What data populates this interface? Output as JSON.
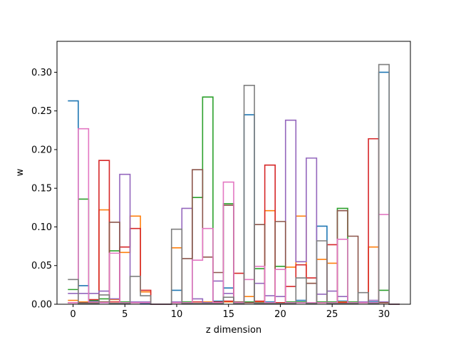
{
  "chart_data": {
    "type": "step",
    "title": "",
    "xlabel": "z dimension",
    "ylabel": "w",
    "xlim": [
      -1.55,
      32.55
    ],
    "ylim": [
      0,
      0.34
    ],
    "x": [
      0,
      1,
      2,
      3,
      4,
      5,
      6,
      7,
      8,
      9,
      10,
      11,
      12,
      13,
      14,
      15,
      16,
      17,
      18,
      19,
      20,
      21,
      22,
      23,
      24,
      25,
      26,
      27,
      28,
      29,
      30,
      31
    ],
    "x_ticks": [
      0,
      5,
      10,
      15,
      20,
      25,
      30
    ],
    "x_tick_labels": [
      "0",
      "5",
      "10",
      "15",
      "20",
      "25",
      "30"
    ],
    "y_ticks": [
      0,
      0.05,
      0.1,
      0.15,
      0.2,
      0.25,
      0.3
    ],
    "y_tick_labels": [
      "0.00",
      "0.05",
      "0.10",
      "0.15",
      "0.20",
      "0.25",
      "0.30"
    ],
    "grid": false,
    "legend": "none",
    "series": [
      {
        "color": "#1f77b4",
        "values": [
          0.263,
          0.024,
          0.004,
          0.002,
          0.001,
          0.001,
          0.003,
          0.001,
          0,
          0,
          0.018,
          0.002,
          0.003,
          0.003,
          0.004,
          0.021,
          0.002,
          0.245,
          0.002,
          0.003,
          0.002,
          0.003,
          0.005,
          0.001,
          0.101,
          0.003,
          0.004,
          0.003,
          0.002,
          0.003,
          0.3,
          0
        ]
      },
      {
        "color": "#ff7f0e",
        "values": [
          0.005,
          0.003,
          0.003,
          0.122,
          0.006,
          0.067,
          0.114,
          0.016,
          0,
          0,
          0.073,
          0.003,
          0.003,
          0.003,
          0.003,
          0.003,
          0.002,
          0.01,
          0.003,
          0.121,
          0.002,
          0.048,
          0.114,
          0.027,
          0.058,
          0.053,
          0.003,
          0.003,
          0.002,
          0.074,
          0.002,
          0
        ]
      },
      {
        "color": "#2ca02c",
        "values": [
          0.019,
          0.136,
          0.005,
          0.007,
          0.069,
          0.003,
          0.002,
          0.002,
          0,
          0,
          0.002,
          0.003,
          0.138,
          0.268,
          0.003,
          0.13,
          0.003,
          0.003,
          0.046,
          0.002,
          0.049,
          0.003,
          0.003,
          0.002,
          0.003,
          0.003,
          0.124,
          0.003,
          0.002,
          0.002,
          0.018,
          0
        ]
      },
      {
        "color": "#d62728",
        "values": [
          0.002,
          0.002,
          0.006,
          0.186,
          0.003,
          0.074,
          0.098,
          0.018,
          0,
          0,
          0.002,
          0.002,
          0.003,
          0.002,
          0.003,
          0.004,
          0.04,
          0.002,
          0.004,
          0.18,
          0.002,
          0.023,
          0.051,
          0.034,
          0.002,
          0.077,
          0.002,
          0.002,
          0.003,
          0.214,
          0.002,
          0
        ]
      },
      {
        "color": "#9467bd",
        "values": [
          0.014,
          0.014,
          0.014,
          0.017,
          0.007,
          0.168,
          0.003,
          0.003,
          0,
          0,
          0.003,
          0.124,
          0.007,
          0.002,
          0.03,
          0.014,
          0.002,
          0.002,
          0.027,
          0.011,
          0.01,
          0.238,
          0.055,
          0.189,
          0.013,
          0.017,
          0.01,
          0.002,
          0.003,
          0.005,
          0.003,
          0
        ]
      },
      {
        "color": "#8c564b",
        "values": [
          0.002,
          0.002,
          0.002,
          0.003,
          0.106,
          0.002,
          0.002,
          0.002,
          0,
          0,
          0.002,
          0.059,
          0.174,
          0.061,
          0.041,
          0.128,
          0.003,
          0.002,
          0.103,
          0.002,
          0.107,
          0.002,
          0.002,
          0.027,
          0.002,
          0.002,
          0.121,
          0.088,
          0.002,
          0.002,
          0.002,
          0
        ]
      },
      {
        "color": "#e377c2",
        "values": [
          0.002,
          0.227,
          0.003,
          0.002,
          0.066,
          0.002,
          0.002,
          0.002,
          0,
          0,
          0.002,
          0.002,
          0.057,
          0.098,
          0.002,
          0.158,
          0.002,
          0.032,
          0.049,
          0.002,
          0.045,
          0.002,
          0.002,
          0.002,
          0.002,
          0.002,
          0.084,
          0.002,
          0.002,
          0.002,
          0.116,
          0
        ]
      },
      {
        "color": "#7f7f7f",
        "values": [
          0.032,
          0.001,
          0.001,
          0.012,
          0.001,
          0.001,
          0.036,
          0.011,
          0,
          0,
          0.097,
          0.001,
          0.001,
          0.001,
          0.001,
          0.009,
          0.001,
          0.283,
          0.001,
          0.001,
          0.001,
          0.001,
          0.034,
          0.001,
          0.082,
          0.001,
          0.001,
          0.001,
          0.015,
          0.001,
          0.31,
          0
        ]
      }
    ]
  }
}
